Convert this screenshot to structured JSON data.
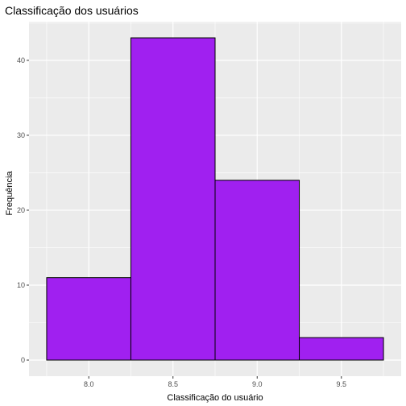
{
  "chart_data": {
    "type": "bar",
    "title": "Classificação dos usuários",
    "xlabel": "Classificação do usuário",
    "ylabel": "Frequência",
    "bins": [
      {
        "start": 7.75,
        "end": 8.25,
        "count": 11
      },
      {
        "start": 8.25,
        "end": 8.75,
        "count": 43
      },
      {
        "start": 8.75,
        "end": 9.25,
        "count": 24
      },
      {
        "start": 9.25,
        "end": 9.75,
        "count": 3
      }
    ],
    "xticks": [
      8.0,
      8.5,
      9.0,
      9.5
    ],
    "xtick_labels": [
      "8.0",
      "8.5",
      "9.0",
      "9.5"
    ],
    "yticks": [
      0,
      10,
      20,
      30,
      40
    ],
    "ytick_labels": [
      "0",
      "10",
      "20",
      "30",
      "40"
    ],
    "xlim": [
      7.645,
      9.855
    ],
    "ylim": [
      -2.15,
      45.15
    ],
    "grid": true,
    "panel_background": "#ebebeb",
    "gridline_color": "#ffffff",
    "bar_fill": "#a020f0",
    "bar_stroke": "#000000"
  }
}
